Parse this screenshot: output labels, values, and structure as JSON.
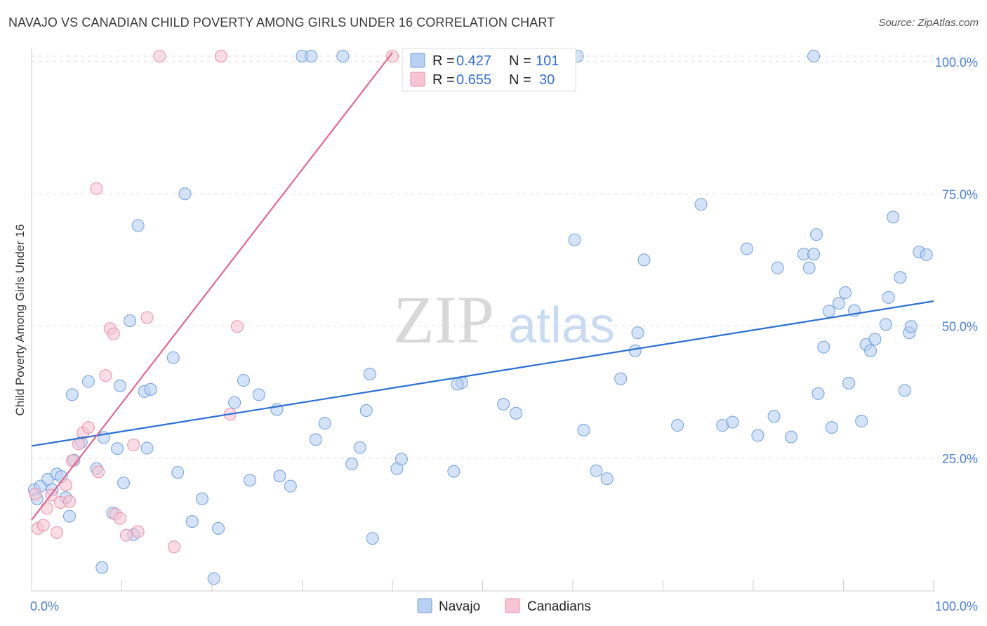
{
  "title": "NAVAJO VS CANADIAN CHILD POVERTY AMONG GIRLS UNDER 16 CORRELATION CHART",
  "source": "Source: ZipAtlas.com",
  "watermark": {
    "zip": "ZIP",
    "atlas": "atlas"
  },
  "colors": {
    "navajo_fill": "#b8d0f2",
    "navajo_stroke": "#6f9fe0",
    "navajo_line": "#2a6fd4",
    "canadian_fill": "#f7c4d3",
    "canadian_stroke": "#e890ab",
    "canadian_line": "#e06890",
    "tick_label": "#4a7fd6",
    "grid": "#dddddd"
  },
  "legend": {
    "rows": [
      {
        "r_label": "R =",
        "r_value": "0.427",
        "n_label": "N =",
        "n_value": "101"
      },
      {
        "r_label": "R =",
        "r_value": "0.655",
        "n_label": "N =",
        "n_value": "30"
      }
    ]
  },
  "bottom_legend": [
    "Navajo",
    "Canadians"
  ],
  "chart_data": {
    "type": "scatter",
    "title": "NAVAJO VS CANADIAN CHILD POVERTY AMONG GIRLS UNDER 16 CORRELATION CHART",
    "xlabel": "",
    "ylabel": "Child Poverty Among Girls Under 16",
    "xlim": [
      0,
      100
    ],
    "ylim": [
      0,
      102
    ],
    "x_tick_labels": [
      "0.0%",
      "100.0%"
    ],
    "y_tick_labels": [
      "25.0%",
      "50.0%",
      "75.0%",
      "100.0%"
    ],
    "y_ticks": [
      25,
      50,
      75,
      100
    ],
    "grid": true,
    "legend_position": "top-center",
    "series": [
      {
        "name": "Navajo",
        "r": 0.427,
        "n": 101,
        "trend": [
          [
            0,
            27.3
          ],
          [
            100,
            54.7
          ]
        ],
        "points": [
          [
            0.3,
            19
          ],
          [
            0.6,
            17.3
          ],
          [
            1.0,
            19.7
          ],
          [
            1.8,
            21
          ],
          [
            2.3,
            19
          ],
          [
            2.8,
            22
          ],
          [
            3.3,
            21.5
          ],
          [
            3.8,
            17.5
          ],
          [
            4.2,
            14
          ],
          [
            4.5,
            37
          ],
          [
            4.7,
            24.6
          ],
          [
            5.5,
            28
          ],
          [
            7.2,
            23
          ],
          [
            6.3,
            39.5
          ],
          [
            7.8,
            4.3
          ],
          [
            8,
            28.9
          ],
          [
            9,
            14.6
          ],
          [
            9.5,
            26.8
          ],
          [
            9.8,
            38.7
          ],
          [
            10.2,
            20.3
          ],
          [
            10.9,
            51
          ],
          [
            11.3,
            10.5
          ],
          [
            11.8,
            69
          ],
          [
            12.5,
            37.6
          ],
          [
            12.8,
            26.9
          ],
          [
            13.2,
            38
          ],
          [
            15.7,
            44
          ],
          [
            16.2,
            22.3
          ],
          [
            17,
            75
          ],
          [
            17.8,
            13
          ],
          [
            18.9,
            17.3
          ],
          [
            20.2,
            2.2
          ],
          [
            20.7,
            11.7
          ],
          [
            22.5,
            35.5
          ],
          [
            23.5,
            39.7
          ],
          [
            24.2,
            20.8
          ],
          [
            25.2,
            37
          ],
          [
            27.2,
            34.2
          ],
          [
            27.5,
            21.6
          ],
          [
            28.7,
            19.7
          ],
          [
            30,
            100
          ],
          [
            31,
            100
          ],
          [
            34.5,
            100
          ],
          [
            31.5,
            28.5
          ],
          [
            32.5,
            31.6
          ],
          [
            35.5,
            23.9
          ],
          [
            36.4,
            27
          ],
          [
            37.1,
            34
          ],
          [
            37.5,
            40.9
          ],
          [
            37.8,
            9.8
          ],
          [
            40.5,
            23
          ],
          [
            41,
            24.8
          ],
          [
            47.7,
            39.3
          ],
          [
            46.8,
            22.5
          ],
          [
            47.2,
            39
          ],
          [
            52.3,
            35.2
          ],
          [
            53.7,
            33.5
          ],
          [
            60.2,
            66.3
          ],
          [
            61.2,
            30.3
          ],
          [
            62.6,
            22.6
          ],
          [
            63.8,
            21.1
          ],
          [
            65.3,
            40
          ],
          [
            66.9,
            45.3
          ],
          [
            67.2,
            48.7
          ],
          [
            67.9,
            62.5
          ],
          [
            71.6,
            31.2
          ],
          [
            74.2,
            73
          ],
          [
            76.6,
            31.2
          ],
          [
            77.7,
            31.8
          ],
          [
            79.3,
            64.6
          ],
          [
            80.5,
            29.3
          ],
          [
            82.3,
            32.9
          ],
          [
            82.7,
            61
          ],
          [
            84.2,
            29
          ],
          [
            85.6,
            63.6
          ],
          [
            86.2,
            61
          ],
          [
            86.7,
            63.6
          ],
          [
            87,
            67.3
          ],
          [
            87.2,
            37.2
          ],
          [
            87.8,
            46
          ],
          [
            88.4,
            52.8
          ],
          [
            88.7,
            30.8
          ],
          [
            89.5,
            54.3
          ],
          [
            90.2,
            56.3
          ],
          [
            90.6,
            39.2
          ],
          [
            91.2,
            52.9
          ],
          [
            92,
            32
          ],
          [
            92.5,
            46.5
          ],
          [
            93,
            45.3
          ],
          [
            93.5,
            47.5
          ],
          [
            94.7,
            50.3
          ],
          [
            95,
            55.4
          ],
          [
            95.5,
            70.6
          ],
          [
            96.3,
            59.2
          ],
          [
            96.8,
            37.8
          ],
          [
            97.3,
            48.7
          ],
          [
            97.5,
            49.9
          ],
          [
            98.4,
            64
          ],
          [
            99.2,
            63.5
          ],
          [
            60.5,
            100
          ],
          [
            86.7,
            100
          ]
        ]
      },
      {
        "name": "Canadians",
        "r": 0.655,
        "n": 30,
        "trend": [
          [
            0,
            13.3
          ],
          [
            40,
            100
          ]
        ],
        "points": [
          [
            0.4,
            18.2
          ],
          [
            0.7,
            11.7
          ],
          [
            1.3,
            12.3
          ],
          [
            1.7,
            15.5
          ],
          [
            2.2,
            18
          ],
          [
            2.8,
            10.9
          ],
          [
            3.2,
            16.6
          ],
          [
            3.8,
            19.9
          ],
          [
            4.2,
            16.8
          ],
          [
            4.5,
            24.5
          ],
          [
            5.2,
            27.7
          ],
          [
            5.7,
            29.8
          ],
          [
            6.3,
            30.8
          ],
          [
            7.2,
            76
          ],
          [
            7.4,
            22.4
          ],
          [
            8.2,
            40.6
          ],
          [
            8.7,
            49.5
          ],
          [
            9.1,
            48.5
          ],
          [
            9.3,
            14.4
          ],
          [
            9.8,
            13.6
          ],
          [
            10.5,
            10.4
          ],
          [
            11.3,
            27.5
          ],
          [
            11.8,
            11.1
          ],
          [
            12.8,
            51.6
          ],
          [
            14.2,
            100
          ],
          [
            15.8,
            8.2
          ],
          [
            21,
            100
          ],
          [
            22,
            33.3
          ],
          [
            22.8,
            49.9
          ],
          [
            40,
            100
          ]
        ]
      }
    ]
  }
}
